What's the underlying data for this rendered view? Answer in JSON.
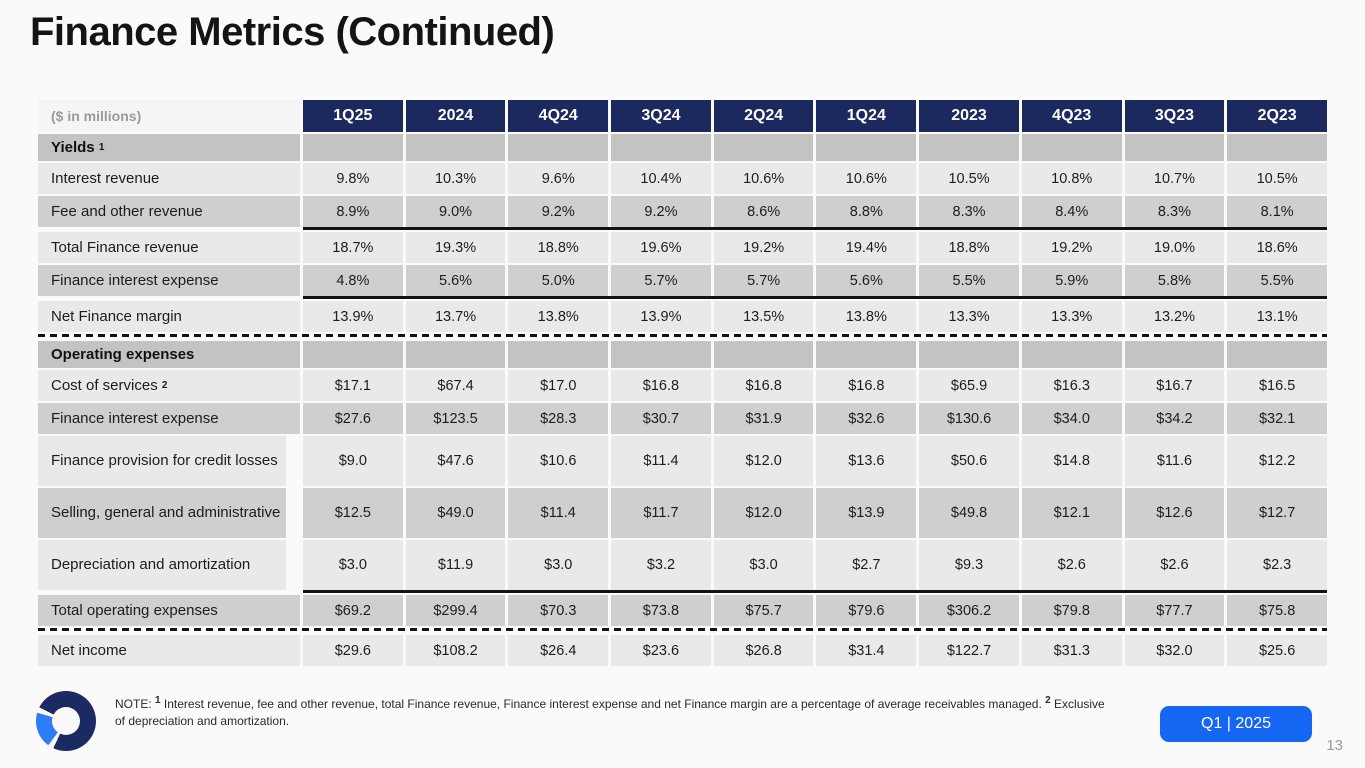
{
  "page": {
    "title": "Finance Metrics (Continued)",
    "badge": "Q1 | 2025",
    "page_number": "13"
  },
  "colors": {
    "header_navy": "#1b295f",
    "row_light": "#e9e9e9",
    "row_dark": "#cfcfcf",
    "section_gray": "#c3c3c3",
    "badge_blue": "#1566f2",
    "logo_navy": "#1b2a63",
    "logo_blue": "#2e7df5"
  },
  "table": {
    "unit_label": "($ in millions)",
    "columns": [
      "1Q25",
      "2024",
      "4Q24",
      "3Q24",
      "2Q24",
      "1Q24",
      "2023",
      "4Q23",
      "3Q23",
      "2Q23"
    ],
    "rows": [
      {
        "type": "section",
        "label": "Yields",
        "sup": "1",
        "values": [
          "",
          "",
          "",
          "",
          "",
          "",
          "",
          "",
          "",
          ""
        ]
      },
      {
        "type": "data",
        "shade": "light",
        "label": "Interest revenue",
        "values": [
          "9.8%",
          "10.3%",
          "9.6%",
          "10.4%",
          "10.6%",
          "10.6%",
          "10.5%",
          "10.8%",
          "10.7%",
          "10.5%"
        ]
      },
      {
        "type": "data",
        "shade": "dark",
        "label": "Fee and other revenue",
        "rule": "solid",
        "values": [
          "8.9%",
          "9.0%",
          "9.2%",
          "9.2%",
          "8.6%",
          "8.8%",
          "8.3%",
          "8.4%",
          "8.3%",
          "8.1%"
        ]
      },
      {
        "type": "data",
        "shade": "light",
        "label": "Total Finance revenue",
        "values": [
          "18.7%",
          "19.3%",
          "18.8%",
          "19.6%",
          "19.2%",
          "19.4%",
          "18.8%",
          "19.2%",
          "19.0%",
          "18.6%"
        ]
      },
      {
        "type": "data",
        "shade": "dark",
        "label": "Finance interest expense",
        "rule": "solid",
        "values": [
          "4.8%",
          "5.6%",
          "5.0%",
          "5.7%",
          "5.7%",
          "5.6%",
          "5.5%",
          "5.9%",
          "5.8%",
          "5.5%"
        ]
      },
      {
        "type": "data",
        "shade": "light",
        "label": "Net Finance margin",
        "rule": "dashed",
        "values": [
          "13.9%",
          "13.7%",
          "13.8%",
          "13.9%",
          "13.5%",
          "13.8%",
          "13.3%",
          "13.3%",
          "13.2%",
          "13.1%"
        ]
      },
      {
        "type": "section",
        "label": "Operating expenses",
        "values": [
          "",
          "",
          "",
          "",
          "",
          "",
          "",
          "",
          "",
          ""
        ]
      },
      {
        "type": "data",
        "shade": "light",
        "label": "Cost of services",
        "sup": "2",
        "values": [
          "$17.1",
          "$67.4",
          "$17.0",
          "$16.8",
          "$16.8",
          "$16.8",
          "$65.9",
          "$16.3",
          "$16.7",
          "$16.5"
        ]
      },
      {
        "type": "data",
        "shade": "dark",
        "label": "Finance interest expense",
        "values": [
          "$27.6",
          "$123.5",
          "$28.3",
          "$30.7",
          "$31.9",
          "$32.6",
          "$130.6",
          "$34.0",
          "$34.2",
          "$32.1"
        ]
      },
      {
        "type": "data",
        "shade": "light",
        "label": "Finance provision for credit losses",
        "tall": true,
        "values": [
          "$9.0",
          "$47.6",
          "$10.6",
          "$11.4",
          "$12.0",
          "$13.6",
          "$50.6",
          "$14.8",
          "$11.6",
          "$12.2"
        ]
      },
      {
        "type": "data",
        "shade": "dark",
        "label": "Selling, general and administrative",
        "tall": true,
        "values": [
          "$12.5",
          "$49.0",
          "$11.4",
          "$11.7",
          "$12.0",
          "$13.9",
          "$49.8",
          "$12.1",
          "$12.6",
          "$12.7"
        ]
      },
      {
        "type": "data",
        "shade": "light",
        "label": "Depreciation and amortization",
        "tall": true,
        "rule": "solid",
        "values": [
          "$3.0",
          "$11.9",
          "$3.0",
          "$3.2",
          "$3.0",
          "$2.7",
          "$9.3",
          "$2.6",
          "$2.6",
          "$2.3"
        ]
      },
      {
        "type": "data",
        "shade": "dark",
        "label": "Total operating expenses",
        "rule": "dashed",
        "values": [
          "$69.2",
          "$299.4",
          "$70.3",
          "$73.8",
          "$75.7",
          "$79.6",
          "$306.2",
          "$79.8",
          "$77.7",
          "$75.8"
        ]
      },
      {
        "type": "data",
        "shade": "light",
        "label": "Net income",
        "values": [
          "$29.6",
          "$108.2",
          "$26.4",
          "$23.6",
          "$26.8",
          "$31.4",
          "$122.7",
          "$31.3",
          "$32.0",
          "$25.6"
        ]
      }
    ]
  },
  "footnote": {
    "prefix": "NOTE: ",
    "sup1": "1",
    "seg1": " Interest revenue, fee and other revenue, total Finance revenue, Finance interest expense and net Finance margin are a percentage of average receivables managed. ",
    "sup2": "2",
    "seg2": " Exclusive of depreciation and amortization."
  }
}
